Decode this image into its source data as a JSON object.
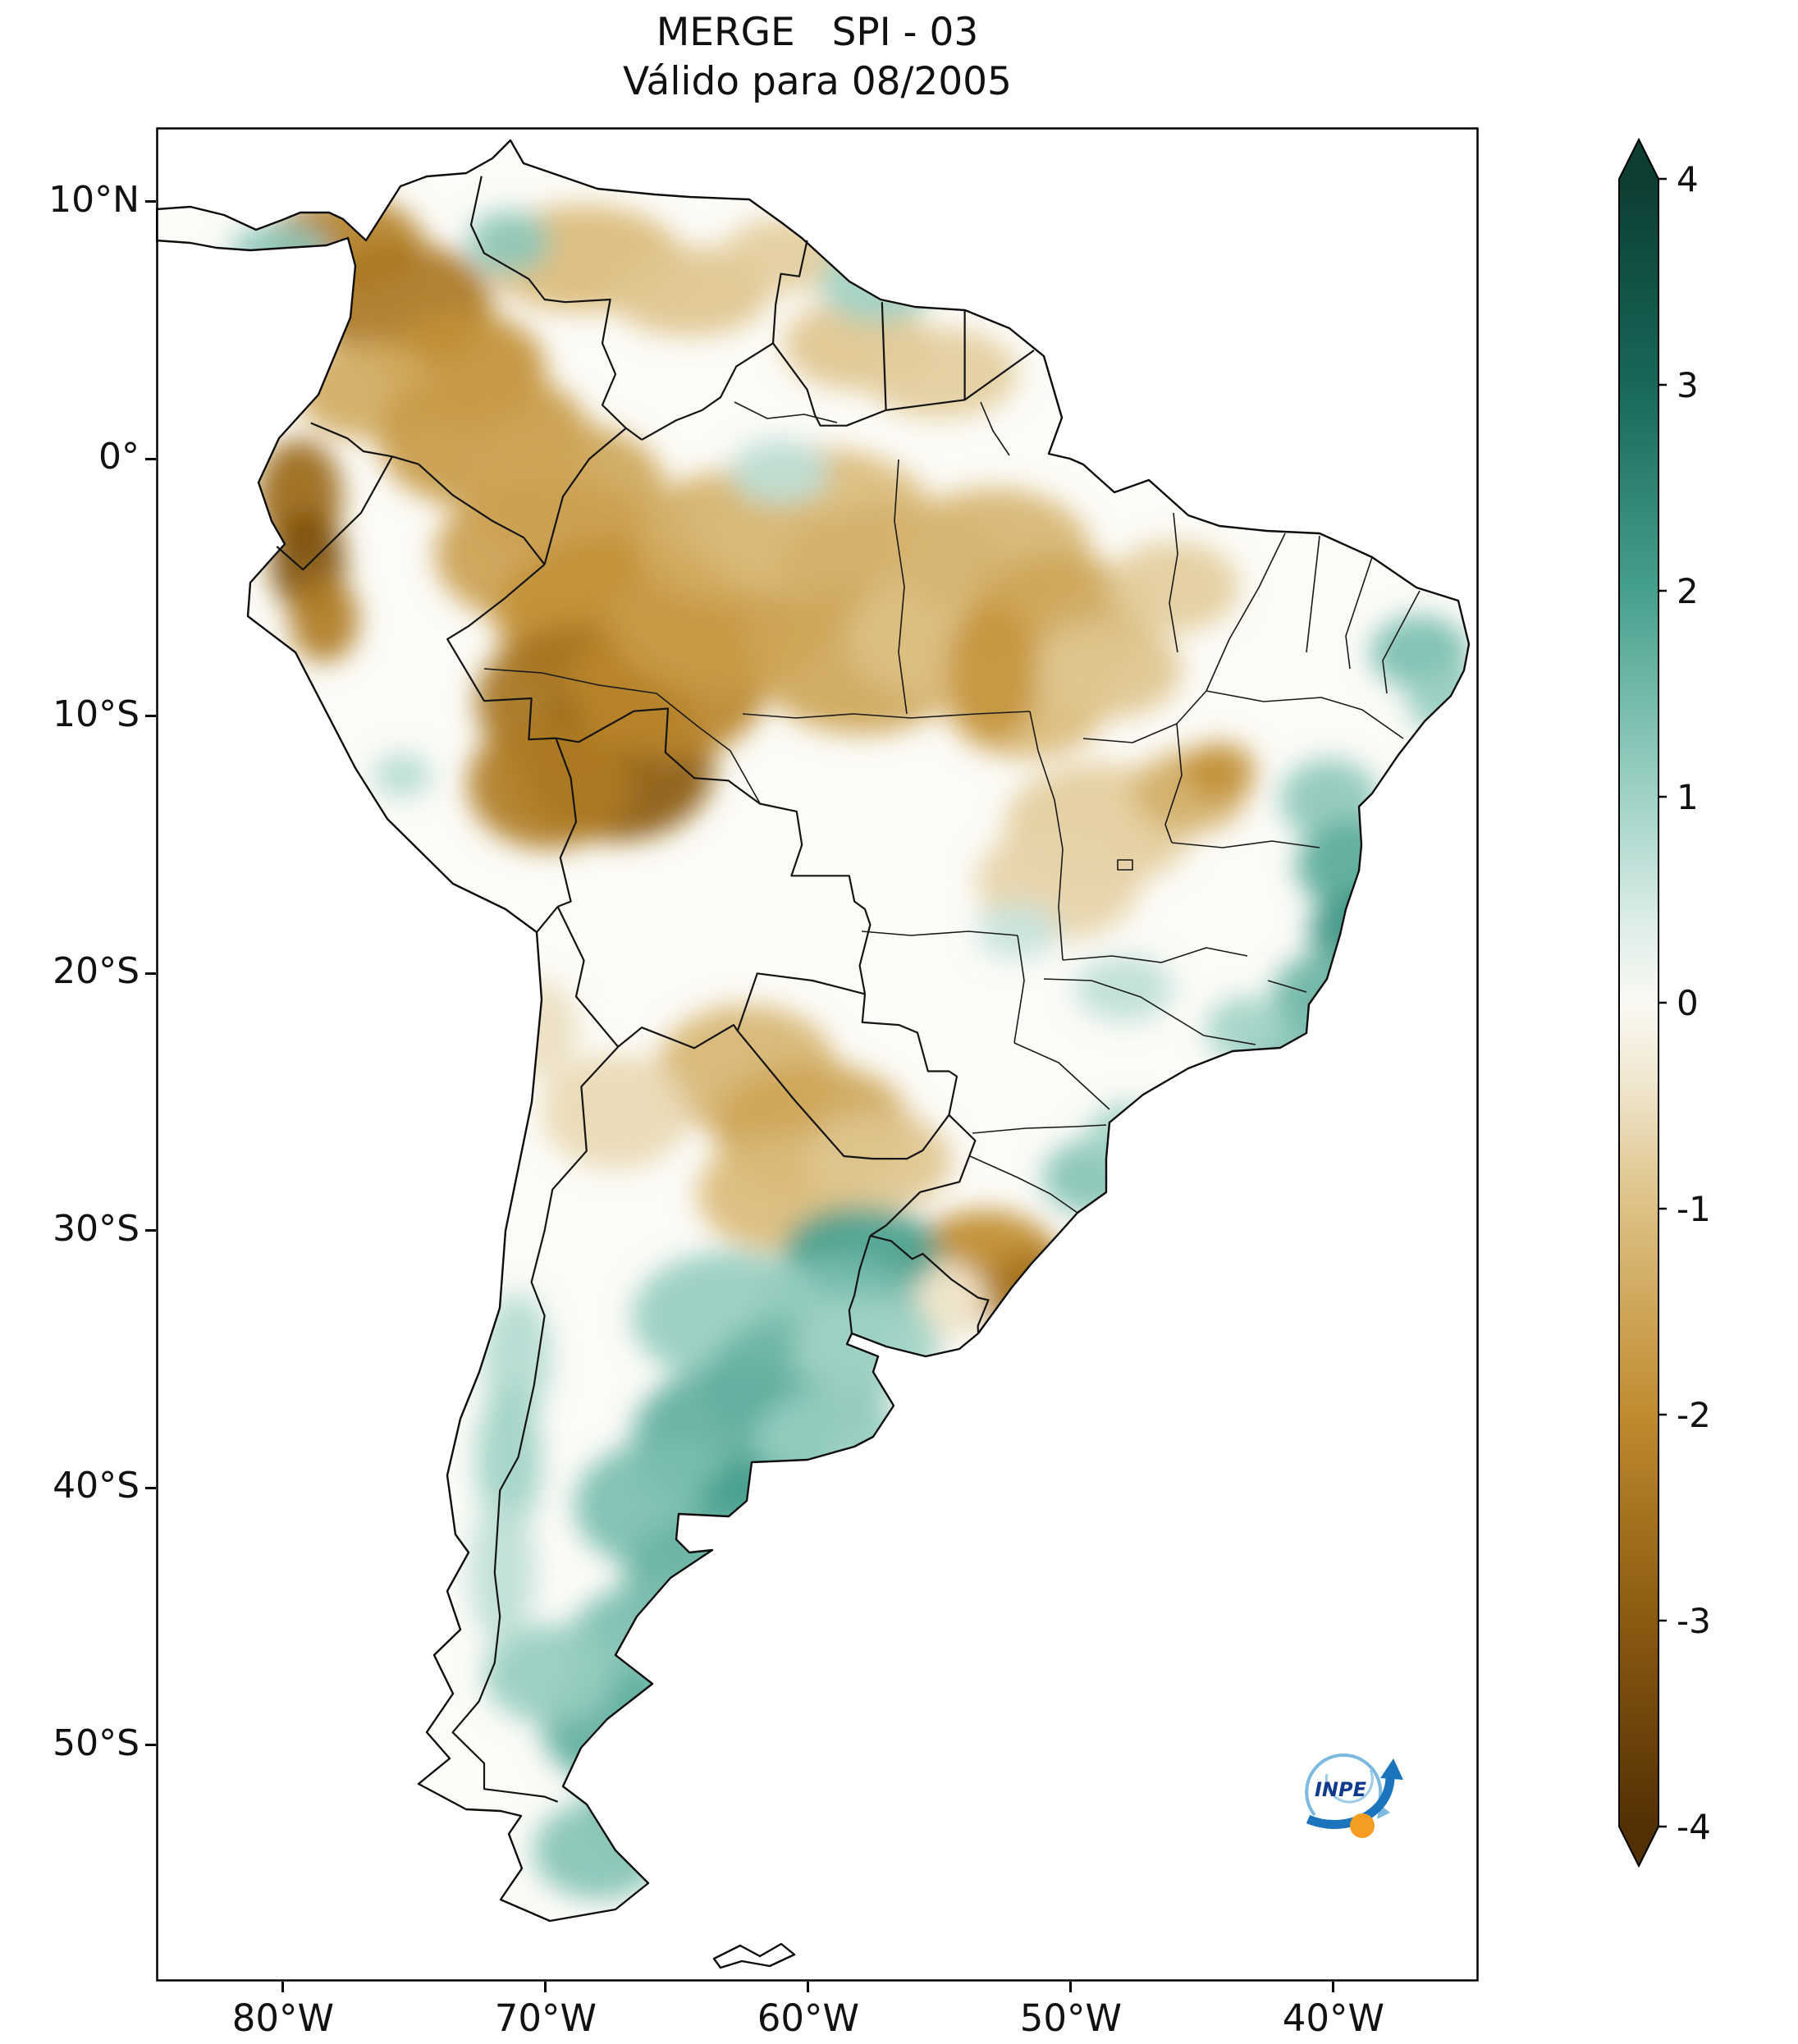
{
  "title": "MERGE   SPI - 03",
  "subtitle": "Válido para 08/2005",
  "axes": {
    "y_ticks": [
      {
        "label": "10°N",
        "deg": 10
      },
      {
        "label": "0°",
        "deg": 0
      },
      {
        "label": "10°S",
        "deg": -10
      },
      {
        "label": "20°S",
        "deg": -20
      },
      {
        "label": "30°S",
        "deg": -30
      },
      {
        "label": "40°S",
        "deg": -40
      },
      {
        "label": "50°S",
        "deg": -50
      }
    ],
    "x_ticks": [
      {
        "label": "80°W",
        "deg": -80
      },
      {
        "label": "70°W",
        "deg": -70
      },
      {
        "label": "60°W",
        "deg": -60
      },
      {
        "label": "50°W",
        "deg": -50
      },
      {
        "label": "40°W",
        "deg": -40
      }
    ]
  },
  "colorbar": {
    "tick_labels": [
      "4",
      "3",
      "2",
      "1",
      "0",
      "-1",
      "-2",
      "-3",
      "-4"
    ],
    "tick_values": [
      4,
      3,
      2,
      1,
      0,
      -1,
      -2,
      -3,
      -4
    ],
    "vmin": -4,
    "vmax": 4,
    "extend": "both",
    "colormap_anchors": [
      [
        -4,
        "#543005"
      ],
      [
        -3,
        "#8a5a10"
      ],
      [
        -2,
        "#bf8b2e"
      ],
      [
        -1,
        "#ddc083"
      ],
      [
        -0.4,
        "#efe6cd"
      ],
      [
        0,
        "#faf9f4"
      ],
      [
        0.4,
        "#dcede8"
      ],
      [
        1,
        "#9fd2c6"
      ],
      [
        2,
        "#46a08e"
      ],
      [
        3,
        "#17685a"
      ],
      [
        4,
        "#0d3d33"
      ]
    ]
  },
  "logo": {
    "text": "INPE"
  },
  "chart_data": {
    "type": "heatmap",
    "product": "MERGE",
    "variable": "SPI-03",
    "valid_for": "08/2005",
    "value_range": [
      -4,
      4
    ],
    "anomaly_blobs": [
      [
        230,
        140,
        95,
        55,
        -2.2
      ],
      [
        300,
        215,
        110,
        75,
        -2.4
      ],
      [
        375,
        295,
        100,
        70,
        -1.9
      ],
      [
        255,
        320,
        85,
        60,
        -1.4
      ],
      [
        520,
        160,
        120,
        65,
        -1.1
      ],
      [
        650,
        200,
        100,
        55,
        -0.9
      ],
      [
        770,
        155,
        80,
        45,
        -0.8
      ],
      [
        855,
        265,
        90,
        55,
        -0.9
      ],
      [
        955,
        300,
        95,
        55,
        -0.8
      ],
      [
        175,
        450,
        52,
        70,
        -2.7
      ],
      [
        185,
        530,
        46,
        62,
        -3.2
      ],
      [
        205,
        600,
        42,
        52,
        -2.3
      ],
      [
        400,
        380,
        130,
        85,
        -1.7
      ],
      [
        500,
        440,
        120,
        80,
        -1.5
      ],
      [
        480,
        520,
        140,
        90,
        -1.6
      ],
      [
        565,
        600,
        150,
        100,
        -1.9
      ],
      [
        520,
        700,
        130,
        95,
        -2.5
      ],
      [
        560,
        780,
        120,
        90,
        -3.0
      ],
      [
        480,
        800,
        100,
        80,
        -2.3
      ],
      [
        625,
        680,
        120,
        90,
        -2.1
      ],
      [
        685,
        600,
        130,
        90,
        -1.7
      ],
      [
        705,
        500,
        120,
        80,
        -1.4
      ],
      [
        800,
        480,
        150,
        90,
        -1.1
      ],
      [
        900,
        550,
        140,
        90,
        -1.3
      ],
      [
        860,
        650,
        130,
        90,
        -1.5
      ],
      [
        960,
        620,
        120,
        80,
        -1.0
      ],
      [
        1020,
        520,
        120,
        80,
        -1.2
      ],
      [
        1100,
        600,
        110,
        80,
        -1.5
      ],
      [
        1060,
        700,
        100,
        70,
        -1.1
      ],
      [
        1160,
        660,
        90,
        60,
        -0.9
      ],
      [
        1240,
        560,
        80,
        55,
        -0.8
      ],
      [
        1020,
        665,
        55,
        85,
        -1.8
      ],
      [
        1150,
        850,
        115,
        75,
        -0.8
      ],
      [
        1260,
        810,
        70,
        50,
        -1.3
      ],
      [
        1100,
        920,
        100,
        70,
        -0.7
      ],
      [
        1295,
        785,
        45,
        35,
        -1.9
      ],
      [
        720,
        1150,
        110,
        80,
        -1.2
      ],
      [
        800,
        1220,
        120,
        80,
        -1.5
      ],
      [
        760,
        1300,
        100,
        70,
        -1.1
      ],
      [
        880,
        1260,
        90,
        60,
        -0.9
      ],
      [
        1010,
        1380,
        90,
        60,
        -2.0
      ],
      [
        1080,
        1420,
        80,
        50,
        -2.5
      ],
      [
        950,
        1425,
        75,
        50,
        -1.7
      ],
      [
        560,
        1200,
        90,
        70,
        -0.6
      ],
      [
        470,
        1100,
        45,
        60,
        -0.5
      ],
      [
        940,
        1430,
        70,
        50,
        -0.3
      ],
      [
        150,
        150,
        60,
        32,
        1.2
      ],
      [
        430,
        140,
        50,
        38,
        1.2
      ],
      [
        880,
        190,
        70,
        48,
        1.0
      ],
      [
        760,
        420,
        60,
        40,
        0.7
      ],
      [
        1540,
        640,
        60,
        45,
        1.4
      ],
      [
        1575,
        700,
        50,
        40,
        1.1
      ],
      [
        1430,
        820,
        60,
        50,
        1.2
      ],
      [
        1460,
        900,
        70,
        55,
        1.8
      ],
      [
        1470,
        980,
        65,
        50,
        2.2
      ],
      [
        1430,
        1060,
        70,
        55,
        1.6
      ],
      [
        1400,
        1140,
        70,
        55,
        1.4
      ],
      [
        1350,
        1200,
        60,
        45,
        1.2
      ],
      [
        1330,
        1100,
        50,
        40,
        1.0
      ],
      [
        1180,
        1050,
        60,
        40,
        0.7
      ],
      [
        1050,
        980,
        50,
        35,
        0.6
      ],
      [
        1140,
        1280,
        60,
        45,
        1.3
      ],
      [
        1185,
        1230,
        50,
        40,
        1.0
      ],
      [
        860,
        1370,
        95,
        55,
        2.0
      ],
      [
        830,
        1440,
        100,
        60,
        1.4
      ],
      [
        700,
        1450,
        120,
        80,
        1.1
      ],
      [
        780,
        1530,
        110,
        80,
        1.6
      ],
      [
        700,
        1600,
        120,
        90,
        1.7
      ],
      [
        620,
        1680,
        110,
        80,
        1.4
      ],
      [
        760,
        1690,
        100,
        80,
        2.0
      ],
      [
        680,
        1770,
        110,
        80,
        1.6
      ],
      [
        600,
        1855,
        100,
        80,
        1.4
      ],
      [
        560,
        1950,
        90,
        70,
        1.7
      ],
      [
        620,
        2030,
        90,
        70,
        1.9
      ],
      [
        540,
        2100,
        80,
        60,
        1.3
      ],
      [
        480,
        1885,
        80,
        60,
        1.1
      ],
      [
        700,
        1905,
        80,
        60,
        1.0
      ],
      [
        820,
        1600,
        90,
        60,
        1.1
      ],
      [
        865,
        1485,
        90,
        60,
        1.0
      ],
      [
        440,
        1500,
        42,
        80,
        0.8
      ],
      [
        430,
        1625,
        40,
        90,
        1.0
      ],
      [
        422,
        1760,
        40,
        90,
        0.7
      ],
      [
        300,
        790,
        36,
        26,
        0.8
      ]
    ]
  }
}
